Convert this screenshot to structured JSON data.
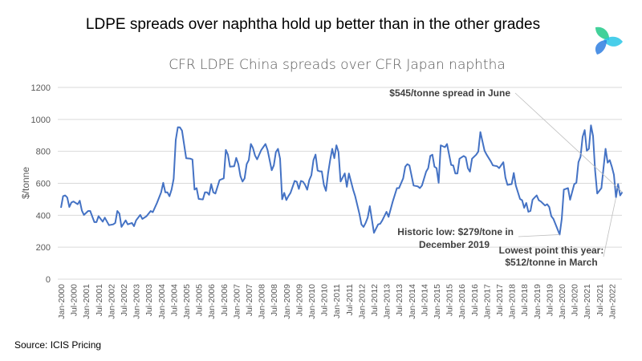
{
  "header": {
    "title": "LDPE spreads over naphtha hold up better than in the other grades"
  },
  "footer": {
    "source": "Source: ICIS Pricing"
  },
  "logo": {
    "name": "icis-logo",
    "colors": [
      "#2ecc8f",
      "#29c5e6",
      "#2f7fe0"
    ]
  },
  "chart_data": {
    "type": "line",
    "title": "CFR LDPE China spreads over CFR Japan naphtha",
    "xlabel": "",
    "ylabel": "$/tonne",
    "ylim": [
      0,
      1200
    ],
    "yticks": [
      0,
      200,
      400,
      600,
      800,
      1000,
      1200
    ],
    "grid": "horizontal",
    "line_color": "#4472C4",
    "xtick_labels": [
      "Jan-2000",
      "Jul-2000",
      "Jan-2001",
      "Jul-2001",
      "Jan-2002",
      "Jul-2002",
      "Jan-2003",
      "Jul-2003",
      "Jan-2004",
      "Jul-2004",
      "Jan-2005",
      "Jul-2005",
      "Jan-2006",
      "Jul-2006",
      "Jan-2007",
      "Jul-2007",
      "Jan-2008",
      "Jul-2008",
      "Jan-2009",
      "Jul-2009",
      "Jan-2010",
      "Jul-2010",
      "Jan-2011",
      "Jul-2011",
      "Jan-2012",
      "Jul-2012",
      "Jan-2013",
      "Jul-2013",
      "Jan-2014",
      "Jul-2014",
      "Jan-2015",
      "Jul-2015",
      "Jan-2016",
      "Jul-2016",
      "Jan-2017",
      "Jul-2017",
      "Jan-2018",
      "Jul-2018",
      "Jan-2019",
      "Jul-2019",
      "Jan-2020",
      "Jul-2020",
      "Jan-2021",
      "Jul-2021",
      "Jan-2022"
    ],
    "points": [
      [
        "2000-01",
        447
      ],
      [
        "2000-02",
        519
      ],
      [
        "2000-03",
        524
      ],
      [
        "2000-04",
        511
      ],
      [
        "2000-05",
        452
      ],
      [
        "2000-06",
        480
      ],
      [
        "2000-07",
        486
      ],
      [
        "2000-09",
        469
      ],
      [
        "2000-10",
        491
      ],
      [
        "2000-11",
        430
      ],
      [
        "2000-12",
        402
      ],
      [
        "2001-02",
        427
      ],
      [
        "2001-03",
        427
      ],
      [
        "2001-05",
        357
      ],
      [
        "2001-06",
        357
      ],
      [
        "2001-07",
        394
      ],
      [
        "2001-08",
        377
      ],
      [
        "2001-09",
        360
      ],
      [
        "2001-10",
        385
      ],
      [
        "2001-12",
        338
      ],
      [
        "2002-02",
        343
      ],
      [
        "2002-03",
        352
      ],
      [
        "2002-04",
        427
      ],
      [
        "2002-05",
        410
      ],
      [
        "2002-06",
        327
      ],
      [
        "2002-08",
        368
      ],
      [
        "2002-09",
        343
      ],
      [
        "2002-11",
        352
      ],
      [
        "2002-12",
        332
      ],
      [
        "2003-01",
        368
      ],
      [
        "2003-03",
        402
      ],
      [
        "2003-04",
        377
      ],
      [
        "2003-06",
        394
      ],
      [
        "2003-08",
        427
      ],
      [
        "2003-09",
        419
      ],
      [
        "2003-11",
        477
      ],
      [
        "2004-01",
        544
      ],
      [
        "2004-02",
        603
      ],
      [
        "2004-03",
        544
      ],
      [
        "2004-04",
        544
      ],
      [
        "2004-05",
        519
      ],
      [
        "2004-06",
        561
      ],
      [
        "2004-07",
        628
      ],
      [
        "2004-08",
        871
      ],
      [
        "2004-09",
        951
      ],
      [
        "2004-10",
        950
      ],
      [
        "2004-11",
        930
      ],
      [
        "2005-01",
        757
      ],
      [
        "2005-03",
        754
      ],
      [
        "2005-04",
        749
      ],
      [
        "2005-05",
        561
      ],
      [
        "2005-06",
        570
      ],
      [
        "2005-07",
        502
      ],
      [
        "2005-09",
        499
      ],
      [
        "2005-10",
        544
      ],
      [
        "2005-11",
        544
      ],
      [
        "2005-12",
        528
      ],
      [
        "2006-01",
        595
      ],
      [
        "2006-02",
        544
      ],
      [
        "2006-03",
        536
      ],
      [
        "2006-05",
        620
      ],
      [
        "2006-07",
        631
      ],
      [
        "2006-08",
        809
      ],
      [
        "2006-09",
        779
      ],
      [
        "2006-10",
        704
      ],
      [
        "2006-12",
        707
      ],
      [
        "2007-01",
        759
      ],
      [
        "2007-02",
        720
      ],
      [
        "2007-03",
        645
      ],
      [
        "2007-04",
        611
      ],
      [
        "2007-05",
        631
      ],
      [
        "2007-06",
        720
      ],
      [
        "2007-07",
        745
      ],
      [
        "2007-08",
        846
      ],
      [
        "2007-09",
        821
      ],
      [
        "2007-10",
        774
      ],
      [
        "2007-11",
        750
      ],
      [
        "2008-01",
        809
      ],
      [
        "2008-03",
        846
      ],
      [
        "2008-04",
        809
      ],
      [
        "2008-06",
        682
      ],
      [
        "2008-07",
        712
      ],
      [
        "2008-08",
        796
      ],
      [
        "2008-09",
        816
      ],
      [
        "2008-10",
        754
      ],
      [
        "2008-11",
        500
      ],
      [
        "2008-12",
        540
      ],
      [
        "2009-01",
        495
      ],
      [
        "2009-02",
        520
      ],
      [
        "2009-03",
        540
      ],
      [
        "2009-05",
        615
      ],
      [
        "2009-06",
        610
      ],
      [
        "2009-07",
        565
      ],
      [
        "2009-08",
        615
      ],
      [
        "2009-09",
        610
      ],
      [
        "2009-10",
        590
      ],
      [
        "2009-11",
        560
      ],
      [
        "2009-12",
        620
      ],
      [
        "2010-01",
        650
      ],
      [
        "2010-02",
        745
      ],
      [
        "2010-03",
        780
      ],
      [
        "2010-04",
        680
      ],
      [
        "2010-05",
        675
      ],
      [
        "2010-06",
        675
      ],
      [
        "2010-07",
        590
      ],
      [
        "2010-08",
        553
      ],
      [
        "2010-09",
        662
      ],
      [
        "2010-10",
        745
      ],
      [
        "2010-11",
        816
      ],
      [
        "2010-12",
        757
      ],
      [
        "2011-01",
        838
      ],
      [
        "2011-02",
        796
      ],
      [
        "2011-03",
        611
      ],
      [
        "2011-05",
        662
      ],
      [
        "2011-06",
        578
      ],
      [
        "2011-07",
        662
      ],
      [
        "2011-09",
        561
      ],
      [
        "2011-10",
        519
      ],
      [
        "2011-12",
        410
      ],
      [
        "2012-01",
        343
      ],
      [
        "2012-02",
        327
      ],
      [
        "2012-03",
        352
      ],
      [
        "2012-04",
        385
      ],
      [
        "2012-05",
        457
      ],
      [
        "2012-07",
        290
      ],
      [
        "2012-09",
        343
      ],
      [
        "2012-10",
        347
      ],
      [
        "2012-11",
        368
      ],
      [
        "2013-01",
        422
      ],
      [
        "2013-02",
        390
      ],
      [
        "2013-04",
        486
      ],
      [
        "2013-06",
        570
      ],
      [
        "2013-07",
        570
      ],
      [
        "2013-09",
        631
      ],
      [
        "2013-10",
        704
      ],
      [
        "2013-11",
        720
      ],
      [
        "2013-12",
        712
      ],
      [
        "2014-02",
        586
      ],
      [
        "2014-04",
        581
      ],
      [
        "2014-05",
        570
      ],
      [
        "2014-06",
        586
      ],
      [
        "2014-08",
        673
      ],
      [
        "2014-09",
        695
      ],
      [
        "2014-10",
        771
      ],
      [
        "2014-11",
        779
      ],
      [
        "2014-12",
        704
      ],
      [
        "2015-01",
        695
      ],
      [
        "2015-02",
        603
      ],
      [
        "2015-03",
        838
      ],
      [
        "2015-05",
        826
      ],
      [
        "2015-06",
        846
      ],
      [
        "2015-08",
        715
      ],
      [
        "2015-09",
        712
      ],
      [
        "2015-10",
        662
      ],
      [
        "2015-11",
        662
      ],
      [
        "2015-12",
        754
      ],
      [
        "2016-02",
        771
      ],
      [
        "2016-03",
        762
      ],
      [
        "2016-04",
        695
      ],
      [
        "2016-05",
        673
      ],
      [
        "2016-06",
        754
      ],
      [
        "2016-08",
        779
      ],
      [
        "2016-09",
        799
      ],
      [
        "2016-10",
        921
      ],
      [
        "2016-12",
        804
      ],
      [
        "2017-01",
        779
      ],
      [
        "2017-03",
        737
      ],
      [
        "2017-04",
        712
      ],
      [
        "2017-06",
        707
      ],
      [
        "2017-07",
        695
      ],
      [
        "2017-09",
        732
      ],
      [
        "2017-10",
        636
      ],
      [
        "2017-11",
        590
      ],
      [
        "2018-01",
        595
      ],
      [
        "2018-02",
        665
      ],
      [
        "2018-03",
        586
      ],
      [
        "2018-05",
        502
      ],
      [
        "2018-06",
        494
      ],
      [
        "2018-07",
        447
      ],
      [
        "2018-08",
        477
      ],
      [
        "2018-09",
        422
      ],
      [
        "2018-10",
        427
      ],
      [
        "2018-11",
        497
      ],
      [
        "2018-12",
        511
      ],
      [
        "2019-01",
        524
      ],
      [
        "2019-02",
        494
      ],
      [
        "2019-03",
        486
      ],
      [
        "2019-05",
        461
      ],
      [
        "2019-06",
        469
      ],
      [
        "2019-07",
        452
      ],
      [
        "2019-08",
        394
      ],
      [
        "2019-09",
        377
      ],
      [
        "2019-12",
        279
      ],
      [
        "2020-01",
        377
      ],
      [
        "2020-02",
        561
      ],
      [
        "2020-04",
        570
      ],
      [
        "2020-05",
        497
      ],
      [
        "2020-07",
        595
      ],
      [
        "2020-08",
        603
      ],
      [
        "2020-09",
        732
      ],
      [
        "2020-10",
        766
      ],
      [
        "2020-11",
        891
      ],
      [
        "2020-12",
        933
      ],
      [
        "2021-01",
        804
      ],
      [
        "2021-02",
        816
      ],
      [
        "2021-03",
        963
      ],
      [
        "2021-04",
        896
      ],
      [
        "2021-05",
        678
      ],
      [
        "2021-06",
        536
      ],
      [
        "2021-08",
        570
      ],
      [
        "2021-09",
        695
      ],
      [
        "2021-10",
        816
      ],
      [
        "2021-11",
        729
      ],
      [
        "2021-12",
        745
      ],
      [
        "2022-01",
        704
      ],
      [
        "2022-02",
        653
      ],
      [
        "2022-03",
        512
      ],
      [
        "2022-04",
        595
      ],
      [
        "2022-05",
        524
      ],
      [
        "2022-06",
        545
      ]
    ],
    "annotations": [
      {
        "lines": [
          "$545/tonne spread in June"
        ],
        "target": "2022-06"
      },
      {
        "lines": [
          "Historic low: $279/tone in",
          "December 2019"
        ],
        "target": "2019-12"
      },
      {
        "lines": [
          "Lowest point this year:",
          "$512/tonne in March"
        ],
        "target": "2022-03"
      }
    ]
  }
}
